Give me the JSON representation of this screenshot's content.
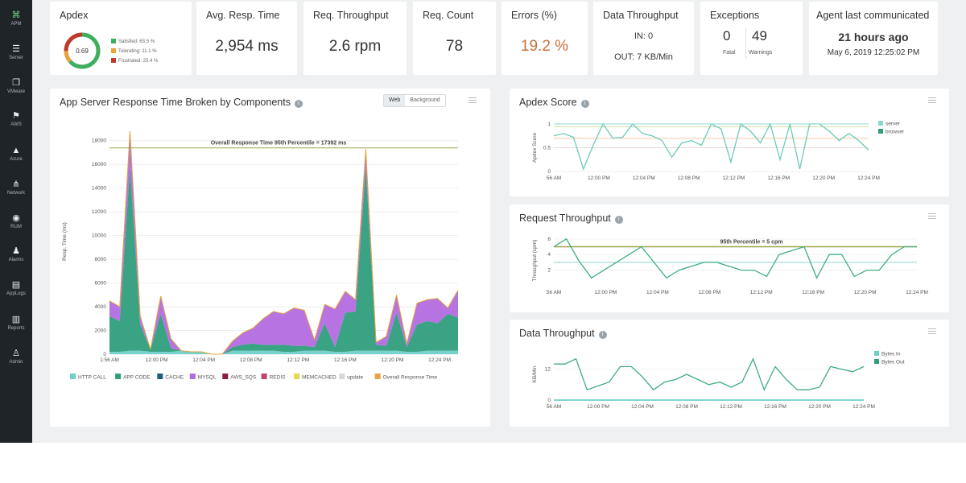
{
  "sidebar": {
    "items": [
      {
        "label": "APM",
        "icon": "binoculars-icon",
        "glyph": "⌘"
      },
      {
        "label": "Server",
        "icon": "server-icon",
        "glyph": "☰"
      },
      {
        "label": "VMware",
        "icon": "vmware-icon",
        "glyph": "❐"
      },
      {
        "label": "AWS",
        "icon": "aws-icon",
        "glyph": "⚑"
      },
      {
        "label": "Azure",
        "icon": "azure-icon",
        "glyph": "▲"
      },
      {
        "label": "Network",
        "icon": "network-icon",
        "glyph": "⋔"
      },
      {
        "label": "RUM",
        "icon": "globe-icon",
        "glyph": "◉"
      },
      {
        "label": "Alarms",
        "icon": "bell-icon",
        "glyph": "♟"
      },
      {
        "label": "AppLogs",
        "icon": "logs-icon",
        "glyph": "▤"
      },
      {
        "label": "Reports",
        "icon": "reports-icon",
        "glyph": "▥"
      },
      {
        "label": "Admin",
        "icon": "admin-icon",
        "glyph": "♙"
      }
    ]
  },
  "kpis": {
    "apdex": {
      "title": "Apdex",
      "score": "0.69",
      "legend": [
        {
          "label": "Satisfied: 63.5 %",
          "color": "#3fae5f",
          "fraction": 0.635
        },
        {
          "label": "Tolerating: 11.1 %",
          "color": "#e8a23a",
          "fraction": 0.111
        },
        {
          "label": "Frustrated: 25.4 %",
          "color": "#c0392b",
          "fraction": 0.254
        }
      ]
    },
    "avg_resp": {
      "title": "Avg. Resp. Time",
      "value": "2,954 ms"
    },
    "req_throughput": {
      "title": "Req. Throughput",
      "value": "2.6 rpm"
    },
    "req_count": {
      "title": "Req. Count",
      "value": "78"
    },
    "errors": {
      "title": "Errors (%)",
      "value": "19.2 %",
      "color": "#c8703a"
    },
    "data_throughput": {
      "title": "Data Throughput",
      "in": "IN: 0",
      "out": "OUT: 7 KB/Min"
    },
    "exceptions": {
      "title": "Exceptions",
      "fatal_value": "0",
      "fatal_label": "Fatal",
      "warnings_value": "49",
      "warnings_label": "Warnings"
    },
    "agent": {
      "title": "Agent last communicated",
      "ago": "21 hours ago",
      "date": "May 6, 2019 12:25:02 PM"
    }
  },
  "components_panel": {
    "title": "App Server Response Time Broken by Components",
    "toggle": [
      "Web",
      "Background"
    ],
    "ylabel": "Resp. Time (ms)",
    "annotation": "Overall Response Time 95th Percentile = 17392 ms",
    "legend": [
      {
        "label": "HTTP CALL",
        "color": "#6fd0c8"
      },
      {
        "label": "APP CODE",
        "color": "#2e9e7c"
      },
      {
        "label": "CACHE",
        "color": "#1f5d7a"
      },
      {
        "label": "MYSQL",
        "color": "#b36be0"
      },
      {
        "label": "AWS_SQS",
        "color": "#8a1d3d"
      },
      {
        "label": "REDIS",
        "color": "#c2436b"
      },
      {
        "label": "MEMCACHED",
        "color": "#e6d84f"
      },
      {
        "label": "update",
        "color": "#d9d9d9"
      },
      {
        "label": "Overall Response Time",
        "color": "#e5a43c"
      }
    ]
  },
  "apdex_panel": {
    "title": "Apdex Score",
    "ylabel": "Apdex Score",
    "legend": [
      {
        "label": "server",
        "color": "#8ed7d0"
      },
      {
        "label": "browser",
        "color": "#2e9e7c"
      }
    ]
  },
  "request_panel": {
    "title": "Request Throughput",
    "ylabel": "Throughput (cpm)",
    "annotation": "95th Percentile = 5 cpm"
  },
  "data_panel": {
    "title": "Data Throughput",
    "ylabel": "KB/Min",
    "legend": [
      {
        "label": "Bytes In",
        "color": "#6fd0c8"
      },
      {
        "label": "Bytes Out",
        "color": "#2e9e7c"
      }
    ]
  },
  "chart_data": [
    {
      "type": "area",
      "title": "App Server Response Time Broken by Components",
      "ylabel": "Resp. Time (ms)",
      "ylim": [
        0,
        19000
      ],
      "yticks": [
        0,
        2000,
        4000,
        6000,
        8000,
        10000,
        12000,
        14000,
        16000,
        18000
      ],
      "xtick_labels": [
        "1:56 AM",
        "12:00 PM",
        "12:04 PM",
        "12:08 PM",
        "12:12 PM",
        "12:16 PM",
        "12:20 PM",
        "12:24 PM"
      ],
      "x_index_range": [
        0,
        34
      ],
      "xtick_indices": [
        0,
        4.6,
        9.2,
        13.8,
        18.4,
        23,
        27.6,
        32.2
      ],
      "reference_line": {
        "label": "Overall Response Time 95th Percentile = 17392 ms",
        "value": 17392
      },
      "series": [
        {
          "name": "HTTP CALL",
          "values": [
            200,
            200,
            300,
            300,
            200,
            200,
            200,
            300,
            200,
            200,
            0,
            0,
            300,
            300,
            300,
            300,
            300,
            200,
            200,
            300,
            300,
            300,
            200,
            200,
            300,
            300,
            300,
            300,
            300,
            200,
            200,
            300,
            300,
            300,
            300
          ]
        },
        {
          "name": "APP CODE",
          "values": [
            3000,
            2600,
            15500,
            2200,
            200,
            3200,
            300,
            0,
            0,
            0,
            0,
            0,
            300,
            500,
            600,
            500,
            500,
            600,
            500,
            400,
            300,
            2300,
            400,
            3300,
            3300,
            15500,
            500,
            400,
            3200,
            400,
            2300,
            2500,
            2300,
            3100,
            2800
          ]
        },
        {
          "name": "MYSQL",
          "values": [
            1300,
            1200,
            3000,
            700,
            0,
            1500,
            800,
            0,
            0,
            0,
            0,
            0,
            500,
            1000,
            1300,
            2200,
            2800,
            2600,
            3200,
            3000,
            600,
            1600,
            3200,
            1800,
            1000,
            1500,
            200,
            800,
            1500,
            300,
            1800,
            1800,
            2100,
            500,
            2300
          ]
        }
      ]
    },
    {
      "type": "line",
      "title": "Apdex Score",
      "ylabel": "Apdex Score",
      "ylim": [
        0,
        1
      ],
      "yticks": [
        0,
        0.5,
        1
      ],
      "xtick_labels": [
        "56 AM",
        "12:00 PM",
        "12:04 PM",
        "12:08 PM",
        "12:12 PM",
        "12:16 PM",
        "12:20 PM",
        "12:24 PM"
      ],
      "threshold_lines": [
        0.94,
        0.7,
        0.5
      ],
      "series": [
        {
          "name": "browser",
          "values": [
            0.75,
            0.8,
            0.72,
            0.05,
            0.55,
            1,
            0.7,
            0.72,
            1,
            0.8,
            0.75,
            0.65,
            0.3,
            0.6,
            0.65,
            0.55,
            1,
            0.9,
            0.2,
            1,
            0.85,
            0.6,
            1,
            0.25,
            1,
            0.05,
            1,
            1,
            0.85,
            0.65,
            0.8,
            0.65,
            0.45
          ]
        },
        {
          "name": "server",
          "values": [
            1,
            1,
            1,
            1,
            1,
            1,
            1,
            1,
            1,
            1,
            1,
            1,
            1,
            1,
            1,
            1,
            1,
            1,
            1,
            1,
            1,
            1,
            1,
            1,
            1,
            1,
            1,
            1,
            1,
            1,
            1,
            1,
            1
          ]
        }
      ]
    },
    {
      "type": "line",
      "title": "Request Throughput",
      "ylabel": "Throughput (cpm)",
      "ylim": [
        0,
        6.5
      ],
      "yticks": [
        2,
        4,
        6
      ],
      "xtick_labels": [
        "56 AM",
        "12:00 PM",
        "12:04 PM",
        "12:08 PM",
        "12:12 PM",
        "12:16 PM",
        "12:20 PM",
        "12:24 PM"
      ],
      "reference_line": {
        "label": "95th Percentile = 5 cpm",
        "value": 5
      },
      "baseline_value": 3,
      "series": [
        {
          "name": "Request Throughput",
          "values": [
            5,
            6,
            3.2,
            1,
            2,
            3,
            4,
            5,
            3,
            1,
            2,
            2.5,
            3,
            3,
            2.5,
            2,
            2,
            1.2,
            4,
            4.5,
            5,
            1,
            4,
            4,
            1.2,
            2,
            2,
            4,
            5,
            5
          ]
        }
      ]
    },
    {
      "type": "line",
      "title": "Data Throughput",
      "ylabel": "KB/Min",
      "ylim": [
        0,
        20
      ],
      "yticks": [
        0,
        12
      ],
      "xtick_labels": [
        "56 AM",
        "12:00 PM",
        "12:04 PM",
        "12:08 PM",
        "12:12 PM",
        "12:16 PM",
        "12:20 PM",
        "12:24 PM"
      ],
      "series": [
        {
          "name": "Bytes Out",
          "values": [
            14,
            14,
            16,
            4,
            5.5,
            7,
            13,
            13,
            9,
            4,
            7,
            8,
            10,
            8,
            6,
            7,
            5,
            7,
            16,
            4,
            13,
            8,
            4,
            4,
            5,
            13,
            12,
            11,
            13
          ]
        },
        {
          "name": "Bytes In",
          "values": [
            0,
            0,
            0,
            0,
            0,
            0,
            0,
            0,
            0,
            0,
            0,
            0,
            0,
            0,
            0,
            0,
            0,
            0,
            0,
            0,
            0,
            0,
            0,
            0,
            0,
            0,
            0,
            0,
            0
          ]
        }
      ]
    }
  ]
}
